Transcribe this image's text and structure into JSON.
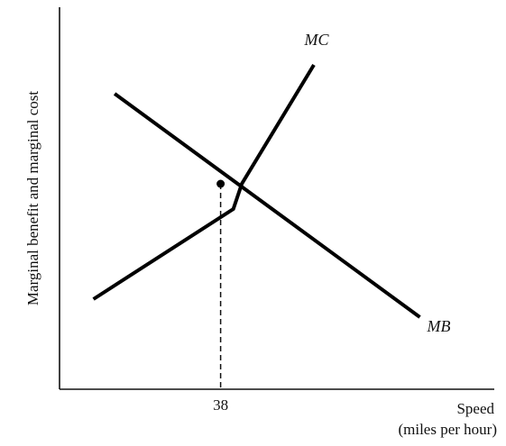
{
  "chart_data": {
    "type": "line",
    "xlabel_line1": "Speed",
    "xlabel_line2": "(miles per hour)",
    "ylabel": "Marginal benefit and marginal cost",
    "x_ticks": [
      {
        "value": 38,
        "label": "38"
      }
    ],
    "xlim": [
      0,
      100
    ],
    "ylim": [
      0,
      100
    ],
    "series": [
      {
        "name": "MC",
        "color": "#000000",
        "points": [
          [
            8,
            25
          ],
          [
            41,
            50
          ],
          [
            43,
            57
          ],
          [
            60,
            90
          ]
        ]
      },
      {
        "name": "MB",
        "color": "#000000",
        "points": [
          [
            13,
            82
          ],
          [
            85,
            20
          ]
        ]
      }
    ],
    "equilibrium": {
      "x": 38,
      "y": 57
    },
    "grid": false,
    "legend": "none"
  }
}
